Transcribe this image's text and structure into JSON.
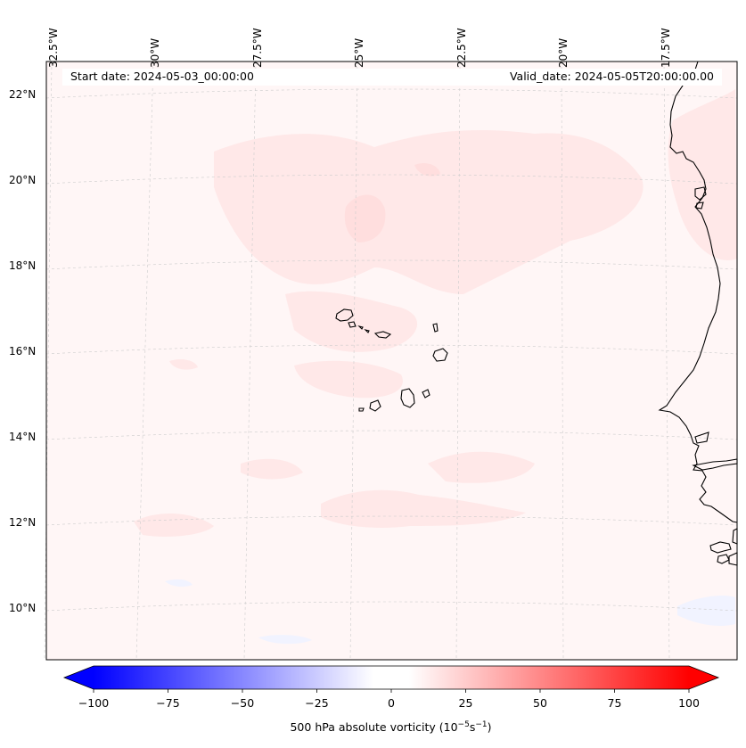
{
  "header": {
    "start_date": "Start date: 2024-05-03_00:00:00",
    "valid_date": "Valid_date: 2024-05-05T20:00:00.00"
  },
  "map": {
    "lon_labels": [
      "32.5°W",
      "30°W",
      "27.5°W",
      "25°W",
      "22.5°W",
      "20°W",
      "17.5°W"
    ],
    "lat_labels": [
      "22°N",
      "20°N",
      "18°N",
      "16°N",
      "14°N",
      "12°N",
      "10°N"
    ],
    "field_colors": {
      "background": "#fff6f6",
      "light_red": "#ffe6e6",
      "medium_red": "#ffd6d6",
      "light_blue": "#f3f5ff"
    }
  },
  "colorbar": {
    "ticks": [
      "−100",
      "−75",
      "−50",
      "−25",
      "0",
      "25",
      "50",
      "75",
      "100"
    ],
    "label_prefix": "500 hPa absolute vorticity (10",
    "label_exp1": "−5",
    "label_mid": "s",
    "label_exp2": "−1",
    "label_suffix": ")",
    "min_color": "#0000ff",
    "mid_color": "#ffffff",
    "max_color": "#ff0000"
  }
}
